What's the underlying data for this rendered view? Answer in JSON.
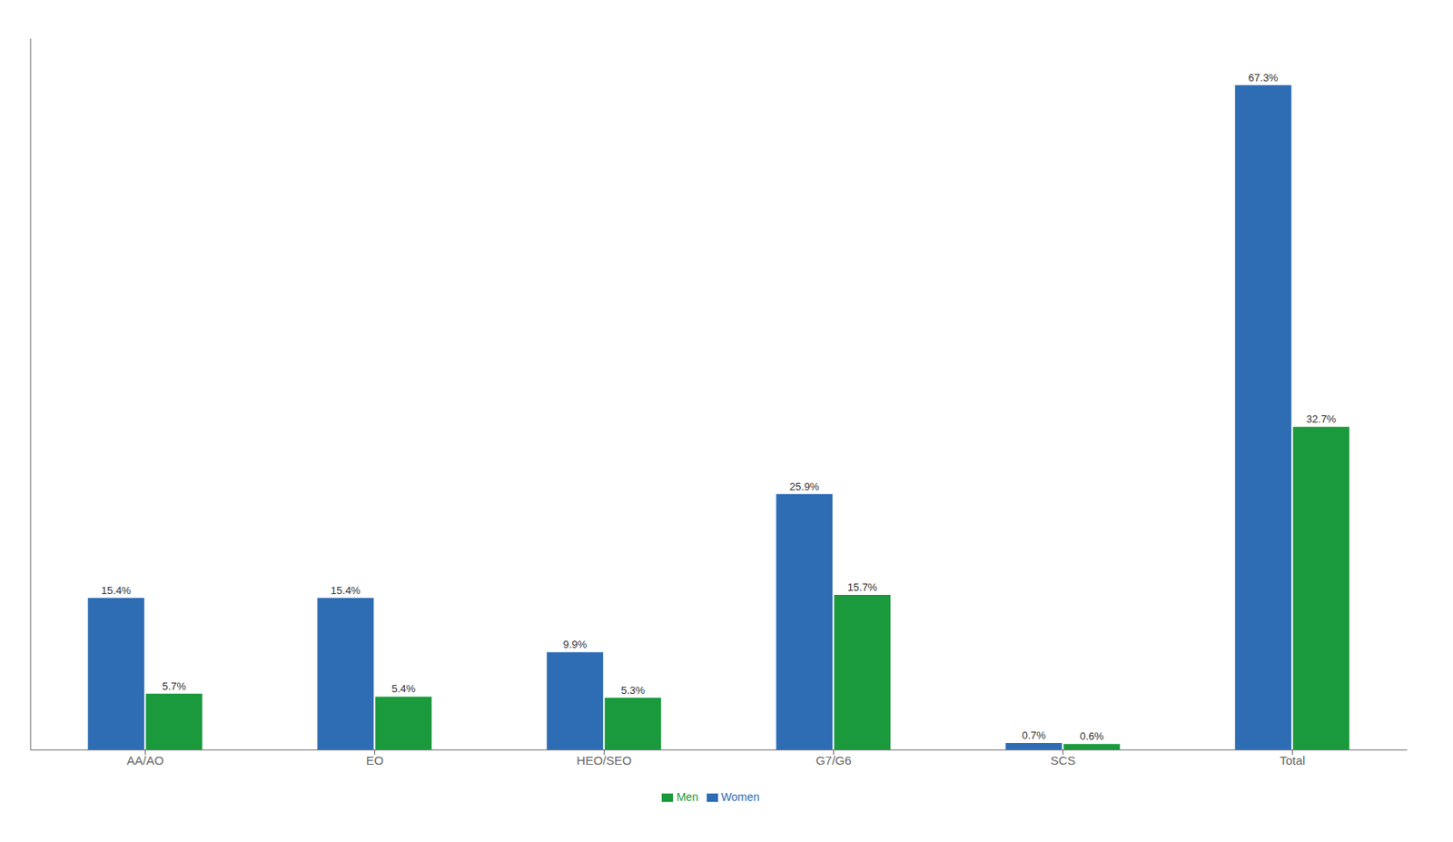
{
  "chart_data": {
    "type": "bar",
    "categories": [
      "AA/AO",
      "EO",
      "HEO/SEO",
      "G7/G6",
      "SCS",
      "Total"
    ],
    "series": [
      {
        "name": "Women",
        "color": "#2E6DB4",
        "values": [
          15.4,
          15.4,
          9.9,
          25.9,
          0.7,
          67.3
        ],
        "value_labels": [
          "15.4%",
          "15.4%",
          "9.9%",
          "25.9%",
          "0.7%",
          "67.3%"
        ]
      },
      {
        "name": "Men",
        "color": "#1A9A3C",
        "values": [
          5.7,
          5.4,
          5.3,
          15.7,
          0.6,
          32.7
        ],
        "value_labels": [
          "5.7%",
          "5.4%",
          "5.3%",
          "15.7%",
          "0.6%",
          "32.7%"
        ]
      }
    ],
    "ylim": [
      0,
      72
    ],
    "grid": false,
    "legend": "bottom",
    "data_labels": true,
    "tick_labels": "x"
  }
}
